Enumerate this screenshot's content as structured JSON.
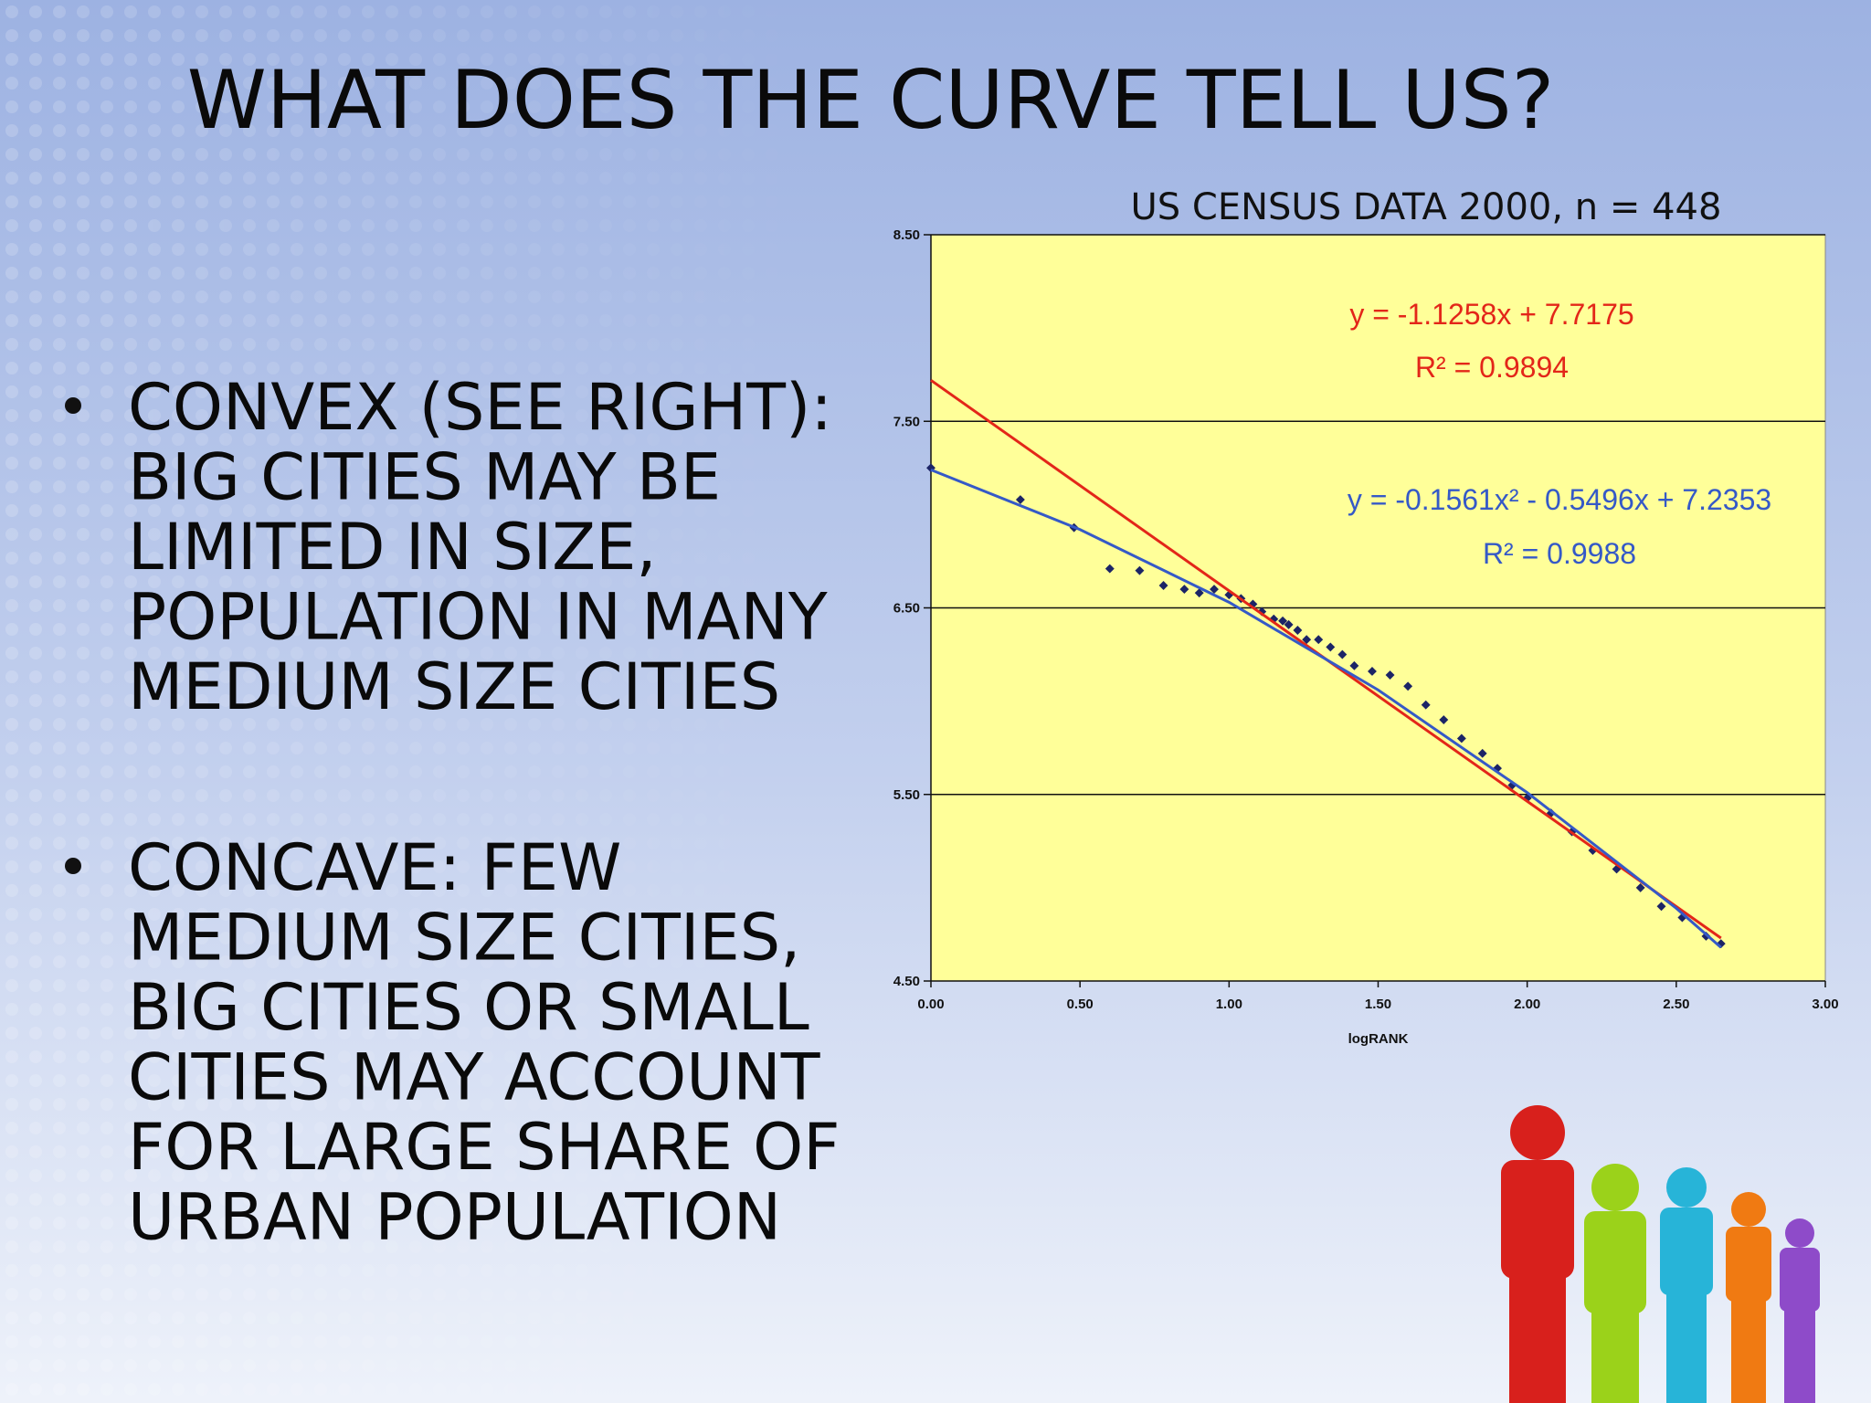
{
  "slide": {
    "title": "WHAT DOES THE CURVE TELL US?",
    "bullets": [
      {
        "lines": [
          "CONVEX (SEE RIGHT):",
          "BIG CITIES MAY  BE",
          "LIMITED IN SIZE,",
          "POPULATION IN MANY",
          "MEDIUM SIZE CITIES"
        ]
      },
      {
        "lines": [
          "CONCAVE: FEW",
          "MEDIUM SIZE CITIES,",
          "BIG CITIES OR SMALL",
          "CITIES MAY ACCOUNT",
          "FOR LARGE SHARE  OF",
          "URBAN POPULATION"
        ]
      }
    ]
  },
  "chart_data": {
    "type": "scatter",
    "title": "US CENSUS DATA 2000, n = 448",
    "x_label": "logRANK",
    "background": "#ffff99",
    "grid": true,
    "xlim": [
      0,
      3
    ],
    "ylim": [
      4.5,
      8.5
    ],
    "xticks": [
      {
        "value": 0,
        "label": "0.00"
      },
      {
        "value": 0.5,
        "label": "0.50"
      },
      {
        "value": 1,
        "label": "1.00"
      },
      {
        "value": 1.5,
        "label": "1.50"
      },
      {
        "value": 2,
        "label": "2.00"
      },
      {
        "value": 2.5,
        "label": "2.50"
      },
      {
        "value": 3,
        "label": "3.00"
      }
    ],
    "yticks": [
      {
        "value": 4.5,
        "label": "4.50"
      },
      {
        "value": 5.5,
        "label": "5.50"
      },
      {
        "value": 6.5,
        "label": "6.50"
      },
      {
        "value": 7.5,
        "label": "7.50"
      },
      {
        "value": 8.5,
        "label": "8.50"
      }
    ],
    "series": [
      {
        "mode": "markers",
        "color": "#1c2466",
        "x": [
          0,
          0.3,
          0.48,
          0.6,
          0.7,
          0.78,
          0.85,
          0.9,
          0.95,
          1.0,
          1.04,
          1.08,
          1.11,
          1.15,
          1.18,
          1.2,
          1.23,
          1.26,
          1.3,
          1.34,
          1.38,
          1.42,
          1.48,
          1.54,
          1.6,
          1.66,
          1.72,
          1.78,
          1.85,
          1.9,
          1.95,
          2.0,
          2.08,
          2.15,
          2.22,
          2.3,
          2.38,
          2.45,
          2.52,
          2.6,
          2.65
        ],
        "values": [
          7.25,
          7.08,
          6.93,
          6.71,
          6.7,
          6.62,
          6.6,
          6.58,
          6.6,
          6.57,
          6.55,
          6.52,
          6.48,
          6.44,
          6.43,
          6.41,
          6.38,
          6.33,
          6.33,
          6.29,
          6.25,
          6.19,
          6.16,
          6.14,
          6.08,
          5.98,
          5.9,
          5.8,
          5.72,
          5.64,
          5.55,
          5.48,
          5.4,
          5.3,
          5.2,
          5.1,
          5.0,
          4.9,
          4.84,
          4.74,
          4.7
        ]
      },
      {
        "mode": "line",
        "color": "#e32619",
        "x": [
          0,
          2.65
        ],
        "values": [
          7.72,
          4.73
        ]
      },
      {
        "mode": "line",
        "color": "#3559c7",
        "x": [
          0,
          0.5,
          1.0,
          1.5,
          2.0,
          2.5,
          2.65
        ],
        "values": [
          7.24,
          6.92,
          6.53,
          6.06,
          5.51,
          4.89,
          4.68
        ]
      }
    ],
    "annotations": [
      {
        "text": "y = -1.1258x + 7.7175",
        "color": "#e32619"
      },
      {
        "text": "R² = 0.9894",
        "color": "#e32619"
      },
      {
        "text": "y = -0.1561x² - 0.5496x + 7.2353",
        "color": "#3559c7"
      },
      {
        "text": "R² = 0.9988",
        "color": "#3559c7"
      }
    ]
  }
}
